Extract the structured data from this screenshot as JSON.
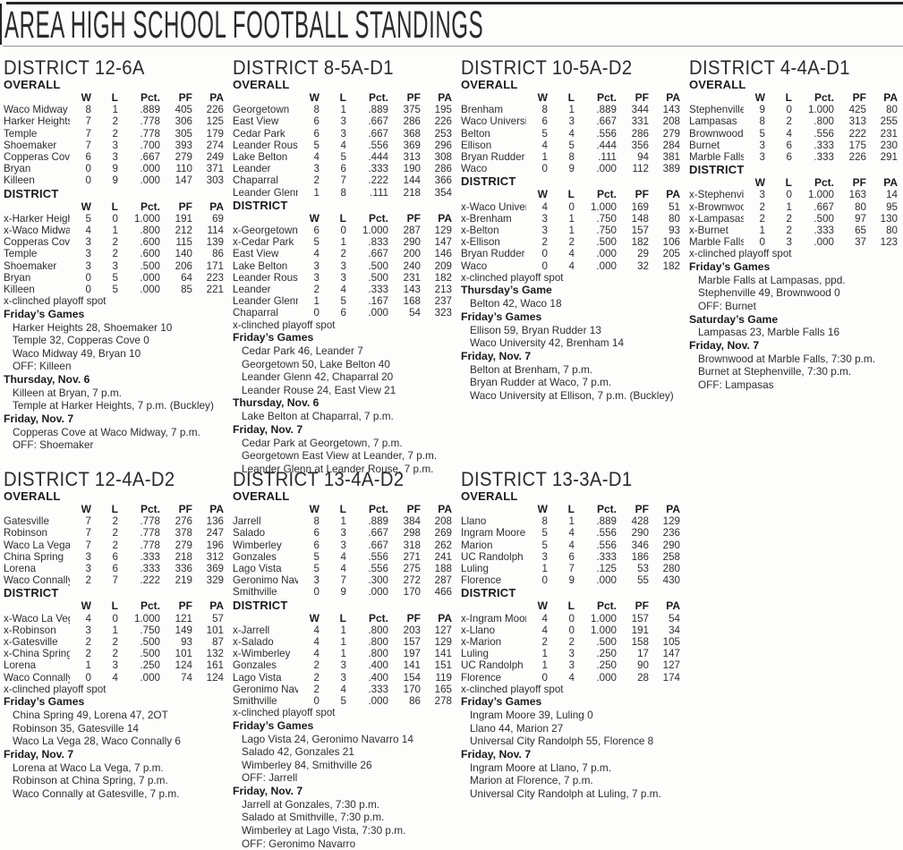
{
  "page_title": "AREA HIGH SCHOOL FOOTBALL STANDINGS",
  "table_headers": {
    "w": "W",
    "l": "L",
    "pct": "Pct.",
    "pf": "PF",
    "pa": "PA"
  },
  "playoff_note": "x-clinched playoff spot",
  "districts": [
    {
      "name": "DISTRICT 12-6A",
      "overall_label": "OVERALL",
      "district_label": "DISTRICT",
      "overall": [
        [
          "Waco Midway",
          "8",
          "1",
          ".889",
          "405",
          "226"
        ],
        [
          "Harker Heights",
          "7",
          "2",
          ".778",
          "306",
          "125"
        ],
        [
          "Temple",
          "7",
          "2",
          ".778",
          "305",
          "179"
        ],
        [
          "Shoemaker",
          "7",
          "3",
          ".700",
          "393",
          "274"
        ],
        [
          "Copperas Cove",
          "6",
          "3",
          ".667",
          "279",
          "249"
        ],
        [
          "Bryan",
          "0",
          "9",
          ".000",
          "110",
          "371"
        ],
        [
          "Killeen",
          "0",
          "9",
          ".000",
          "147",
          "303"
        ]
      ],
      "district": [
        [
          "x-Harker Heights",
          "5",
          "0",
          "1.000",
          "191",
          "69"
        ],
        [
          "x-Waco Midway",
          "4",
          "1",
          ".800",
          "212",
          "114"
        ],
        [
          "Copperas Cove",
          "3",
          "2",
          ".600",
          "115",
          "139"
        ],
        [
          "Temple",
          "3",
          "2",
          ".600",
          "140",
          "86"
        ],
        [
          "Shoemaker",
          "3",
          "3",
          ".500",
          "206",
          "171"
        ],
        [
          "Bryan",
          "0",
          "5",
          ".000",
          "64",
          "223"
        ],
        [
          "Killeen",
          "0",
          "5",
          ".000",
          "85",
          "221"
        ]
      ],
      "games": [
        {
          "heading": "Friday’s Games",
          "lines": [
            "Harker Heights 28, Shoemaker 10",
            "Temple 32, Copperas Cove 0",
            "Waco Midway 49, Bryan 10",
            "OFF: Killeen"
          ]
        },
        {
          "heading": "Thursday, Nov. 6",
          "lines": [
            "Killeen at Bryan, 7 p.m.",
            "Temple at Harker Heights, 7 p.m. (Buckley)"
          ]
        },
        {
          "heading": "Friday, Nov. 7",
          "lines": [
            "Copperas Cove at Waco Midway, 7 p.m.",
            "OFF: Shoemaker"
          ]
        }
      ]
    },
    {
      "name": "DISTRICT 8-5A-D1",
      "overall_label": "OVERALL",
      "district_label": "DISTRICT",
      "overall": [
        [
          "Georgetown",
          "8",
          "1",
          ".889",
          "375",
          "195"
        ],
        [
          "East View",
          "6",
          "3",
          ".667",
          "286",
          "226"
        ],
        [
          "Cedar Park",
          "6",
          "3",
          ".667",
          "368",
          "253"
        ],
        [
          "Leander Rouse",
          "5",
          "4",
          ".556",
          "369",
          "296"
        ],
        [
          "Lake Belton",
          "4",
          "5",
          ".444",
          "313",
          "308"
        ],
        [
          "Leander",
          "3",
          "6",
          ".333",
          "190",
          "286"
        ],
        [
          "Chaparral",
          "2",
          "7",
          ".222",
          "144",
          "366"
        ],
        [
          "Leander Glenn",
          "1",
          "8",
          ".111",
          "218",
          "354"
        ]
      ],
      "district": [
        [
          "x-Georgetown",
          "6",
          "0",
          "1.000",
          "287",
          "129"
        ],
        [
          "x-Cedar Park",
          "5",
          "1",
          ".833",
          "290",
          "147"
        ],
        [
          "East View",
          "4",
          "2",
          ".667",
          "200",
          "146"
        ],
        [
          "Lake Belton",
          "3",
          "3",
          ".500",
          "240",
          "209"
        ],
        [
          "Leander Rouse",
          "3",
          "3",
          ".500",
          "231",
          "182"
        ],
        [
          "Leander",
          "2",
          "4",
          ".333",
          "143",
          "213"
        ],
        [
          "Leander Glenn",
          "1",
          "5",
          ".167",
          "168",
          "237"
        ],
        [
          "Chaparral",
          "0",
          "6",
          ".000",
          "54",
          "323"
        ]
      ],
      "games": [
        {
          "heading": "Friday’s Games",
          "lines": [
            "Cedar Park 46, Leander 7",
            "Georgetown 50, Lake Belton 40",
            "Leander Glenn 42, Chaparral 20",
            "Leander Rouse 24, East View 21"
          ]
        },
        {
          "heading": "Thursday, Nov. 6",
          "lines": [
            "Lake Belton at Chaparral, 7 p.m."
          ]
        },
        {
          "heading": "Friday, Nov. 7",
          "lines": [
            "Cedar Park at Georgetown, 7 p.m.",
            "Georgetown East View at Leander, 7 p.m.",
            "Leander Glenn at Leander Rouse, 7 p.m."
          ]
        }
      ]
    },
    {
      "name": "DISTRICT 10-5A-D2",
      "overall_label": "OVERALL",
      "district_label": "DISTRICT",
      "overall": [
        [
          "Brenham",
          "8",
          "1",
          ".889",
          "344",
          "143"
        ],
        [
          "Waco University",
          "6",
          "3",
          ".667",
          "331",
          "208"
        ],
        [
          "Belton",
          "5",
          "4",
          ".556",
          "286",
          "279"
        ],
        [
          "Ellison",
          "4",
          "5",
          ".444",
          "356",
          "284"
        ],
        [
          "Bryan Rudder",
          "1",
          "8",
          ".111",
          "94",
          "381"
        ],
        [
          "Waco",
          "0",
          "9",
          ".000",
          "112",
          "389"
        ]
      ],
      "district": [
        [
          "x-Waco University",
          "4",
          "0",
          "1.000",
          "169",
          "51"
        ],
        [
          "x-Brenham",
          "3",
          "1",
          ".750",
          "148",
          "80"
        ],
        [
          "x-Belton",
          "3",
          "1",
          ".750",
          "157",
          "93"
        ],
        [
          "x-Ellison",
          "2",
          "2",
          ".500",
          "182",
          "106"
        ],
        [
          "Bryan Rudder",
          "0",
          "4",
          ".000",
          "29",
          "205"
        ],
        [
          "Waco",
          "0",
          "4",
          ".000",
          "32",
          "182"
        ]
      ],
      "games": [
        {
          "heading": "Thursday’s Game",
          "lines": [
            "Belton 42, Waco 18"
          ]
        },
        {
          "heading": "Friday’s Games",
          "lines": [
            "Ellison 59, Bryan Rudder 13",
            "Waco University 42, Brenham 14"
          ]
        },
        {
          "heading": "Friday, Nov. 7",
          "lines": [
            "Belton at Brenham, 7 p.m.",
            "Bryan Rudder at Waco, 7 p.m.",
            "Waco University at Ellison, 7 p.m. (Buckley)"
          ]
        }
      ]
    },
    {
      "name": "DISTRICT 4-4A-D1",
      "overall_label": "OVERALL",
      "district_label": "DISTRICT",
      "overall": [
        [
          "Stephenville",
          "9",
          "0",
          "1.000",
          "425",
          "80"
        ],
        [
          "Lampasas",
          "8",
          "2",
          ".800",
          "313",
          "255"
        ],
        [
          "Brownwood",
          "5",
          "4",
          ".556",
          "222",
          "231"
        ],
        [
          "Burnet",
          "3",
          "6",
          ".333",
          "175",
          "230"
        ],
        [
          "Marble Falls",
          "3",
          "6",
          ".333",
          "226",
          "291"
        ]
      ],
      "district": [
        [
          "x-Stephenville",
          "3",
          "0",
          "1.000",
          "163",
          "14"
        ],
        [
          "x-Brownwood",
          "2",
          "1",
          ".667",
          "80",
          "95"
        ],
        [
          "x-Lampasas",
          "2",
          "2",
          ".500",
          "97",
          "130"
        ],
        [
          "x-Burnet",
          "1",
          "2",
          ".333",
          "65",
          "80"
        ],
        [
          "Marble Falls",
          "0",
          "3",
          ".000",
          "37",
          "123"
        ]
      ],
      "games": [
        {
          "heading": "Friday’s Games",
          "lines": [
            "Marble Falls at Lampasas, ppd.",
            "Stephenville 49, Brownwood 0",
            "OFF: Burnet"
          ]
        },
        {
          "heading": "Saturday’s Game",
          "lines": [
            "Lampasas 23, Marble Falls 16"
          ]
        },
        {
          "heading": "Friday, Nov. 7",
          "lines": [
            "Brownwood at Marble Falls, 7:30 p.m.",
            "Burnet at Stephenville, 7:30 p.m.",
            "OFF: Lampasas"
          ]
        }
      ]
    },
    {
      "name": "DISTRICT 12-4A-D2",
      "overall_label": "OVERALL",
      "district_label": "DISTRICT",
      "overall": [
        [
          "Gatesville",
          "7",
          "2",
          ".778",
          "276",
          "136"
        ],
        [
          "Robinson",
          "7",
          "2",
          ".778",
          "378",
          "247"
        ],
        [
          "Waco La Vega",
          "7",
          "2",
          ".778",
          "279",
          "196"
        ],
        [
          "China Spring",
          "3",
          "6",
          ".333",
          "218",
          "312"
        ],
        [
          "Lorena",
          "3",
          "6",
          ".333",
          "336",
          "369"
        ],
        [
          "Waco Connally",
          "2",
          "7",
          ".222",
          "219",
          "329"
        ]
      ],
      "district": [
        [
          "x-Waco La Vega",
          "4",
          "0",
          "1.000",
          "121",
          "57"
        ],
        [
          "x-Robinson",
          "3",
          "1",
          ".750",
          "149",
          "101"
        ],
        [
          "x-Gatesville",
          "2",
          "2",
          ".500",
          "93",
          "87"
        ],
        [
          "x-China Spring",
          "2",
          "2",
          ".500",
          "101",
          "132"
        ],
        [
          "Lorena",
          "1",
          "3",
          ".250",
          "124",
          "161"
        ],
        [
          "Waco Connally",
          "0",
          "4",
          ".000",
          "74",
          "124"
        ]
      ],
      "games": [
        {
          "heading": "Friday’s Games",
          "lines": [
            "China Spring 49, Lorena 47, 2OT",
            "Robinson 35, Gatesville 14",
            "Waco La Vega 28, Waco Connally 6"
          ]
        },
        {
          "heading": "Friday, Nov. 7",
          "lines": [
            "Lorena at Waco La Vega, 7 p.m.",
            "Robinson at China Spring, 7 p.m.",
            "Waco Connally at Gatesville, 7 p.m."
          ]
        }
      ]
    },
    {
      "name": "DISTRICT 13-4A-D2",
      "overall_label": "OVERALL",
      "district_label": "DISTRICT",
      "overall": [
        [
          "Jarrell",
          "8",
          "1",
          ".889",
          "384",
          "208"
        ],
        [
          "Salado",
          "6",
          "3",
          ".667",
          "298",
          "269"
        ],
        [
          "Wimberley",
          "6",
          "3",
          ".667",
          "318",
          "262"
        ],
        [
          "Gonzales",
          "5",
          "4",
          ".556",
          "271",
          "241"
        ],
        [
          "Lago Vista",
          "5",
          "4",
          ".556",
          "275",
          "188"
        ],
        [
          "Geronimo Navarro",
          "3",
          "7",
          ".300",
          "272",
          "287"
        ],
        [
          "Smithville",
          "0",
          "9",
          ".000",
          "170",
          "466"
        ]
      ],
      "district": [
        [
          "x-Jarrell",
          "4",
          "1",
          ".800",
          "203",
          "127"
        ],
        [
          "x-Salado",
          "4",
          "1",
          ".800",
          "157",
          "129"
        ],
        [
          "x-Wimberley",
          "4",
          "1",
          ".800",
          "197",
          "141"
        ],
        [
          "Gonzales",
          "2",
          "3",
          ".400",
          "141",
          "151"
        ],
        [
          "Lago Vista",
          "2",
          "3",
          ".400",
          "154",
          "119"
        ],
        [
          "Geronimo Navarro",
          "2",
          "4",
          ".333",
          "170",
          "165"
        ],
        [
          "Smithville",
          "0",
          "5",
          ".000",
          "86",
          "278"
        ]
      ],
      "games": [
        {
          "heading": "Friday’s Games",
          "lines": [
            "Lago Vista 24, Geronimo Navarro 14",
            "Salado 42, Gonzales 21",
            "Wimberley 84, Smithville 26",
            "OFF: Jarrell"
          ]
        },
        {
          "heading": "Friday, Nov. 7",
          "lines": [
            "Jarrell at Gonzales, 7:30 p.m.",
            "Salado at Smithville, 7:30 p.m.",
            "Wimberley at Lago Vista, 7:30 p.m.",
            "OFF: Geronimo Navarro"
          ]
        }
      ]
    },
    {
      "name": "DISTRICT 13-3A-D1",
      "overall_label": "OVERALL",
      "district_label": "DISTRICT",
      "overall": [
        [
          "Llano",
          "8",
          "1",
          ".889",
          "428",
          "129"
        ],
        [
          "Ingram Moore",
          "5",
          "4",
          ".556",
          "290",
          "236"
        ],
        [
          "Marion",
          "5",
          "4",
          ".556",
          "346",
          "290"
        ],
        [
          "UC Randolph",
          "3",
          "6",
          ".333",
          "186",
          "258"
        ],
        [
          "Luling",
          "1",
          "7",
          ".125",
          "53",
          "280"
        ],
        [
          "Florence",
          "0",
          "9",
          ".000",
          "55",
          "430"
        ]
      ],
      "district": [
        [
          "x-Ingram Moore",
          "4",
          "0",
          "1.000",
          "157",
          "54"
        ],
        [
          "x-Llano",
          "4",
          "0",
          "1.000",
          "191",
          "34"
        ],
        [
          "x-Marion",
          "2",
          "2",
          ".500",
          "158",
          "105"
        ],
        [
          "Luling",
          "1",
          "3",
          ".250",
          "17",
          "147"
        ],
        [
          "UC Randolph",
          "1",
          "3",
          ".250",
          "90",
          "127"
        ],
        [
          "Florence",
          "0",
          "4",
          ".000",
          "28",
          "174"
        ]
      ],
      "games": [
        {
          "heading": "Friday’s Games",
          "lines": [
            "Ingram Moore 39, Luling 0",
            "Llano 44, Marion 27",
            "Universal City Randolph 55, Florence 8"
          ]
        },
        {
          "heading": "Friday, Nov. 7",
          "lines": [
            "Ingram Moore at Llano, 7 p.m.",
            "Marion at Florence, 7 p.m.",
            "Universal City Randolph at Luling, 7 p.m."
          ]
        }
      ]
    }
  ]
}
